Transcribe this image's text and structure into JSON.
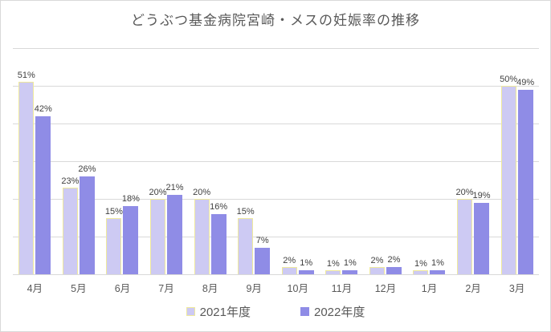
{
  "chart": {
    "title": "どうぶつ基金病院宮崎・メスの妊娠率の推移"
  },
  "chart_data": {
    "type": "bar",
    "title": "どうぶつ基金病院宮崎・メスの妊娠率の推移",
    "categories": [
      "4月",
      "5月",
      "6月",
      "7月",
      "8月",
      "9月",
      "10月",
      "11月",
      "12月",
      "1月",
      "2月",
      "3月"
    ],
    "series": [
      {
        "name": "2021年度",
        "values": [
          51,
          23,
          15,
          20,
          20,
          15,
          2,
          1,
          2,
          1,
          20,
          50
        ],
        "labels": [
          "51%",
          "23%",
          "15%",
          "20%",
          "20%",
          "15%",
          "2%",
          "1%",
          "2%",
          "1%",
          "20%",
          "50%"
        ]
      },
      {
        "name": "2022年度",
        "values": [
          42,
          26,
          18,
          21,
          16,
          7,
          1,
          1,
          2,
          1,
          19,
          49
        ],
        "labels": [
          "42%",
          "26%",
          "18%",
          "21%",
          "16%",
          "7%",
          "1%",
          "1%",
          "2%",
          "1%",
          "19%",
          "49%"
        ]
      }
    ],
    "xlabel": "",
    "ylabel": "",
    "ylim": [
      0,
      60
    ],
    "grid_interval": 10,
    "grid": "on",
    "y_tick_labels_visible": false,
    "legend_position": "bottom",
    "data_labels": "outside-end"
  },
  "colors": {
    "series_2021_fill": "#cdcaf3",
    "series_2021_border": "#efe99c",
    "series_2022_fill": "#8f8ce6",
    "gridline": "#d9d9d9",
    "frame_border": "#d9d9d9",
    "title": "#595959",
    "data_label": "#404040",
    "axis_label": "#595959"
  }
}
